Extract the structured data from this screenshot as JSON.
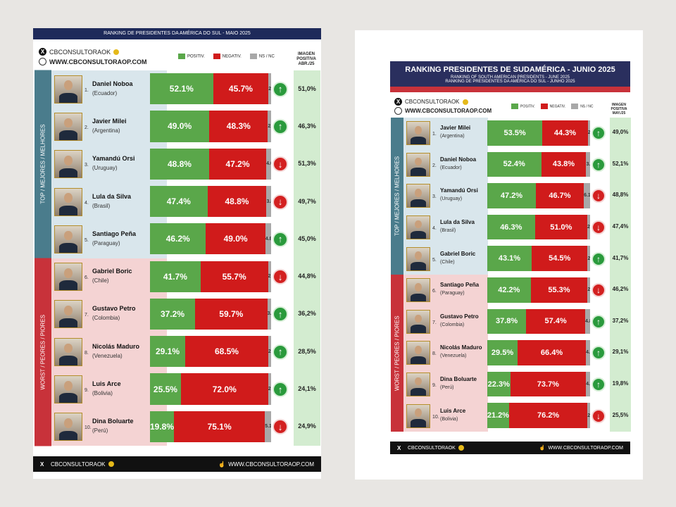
{
  "chart_data": [
    {
      "type": "bar",
      "title": "RANKING DE PRESIDENTES DA AMÉRICA DO SUL - MAIO 2025",
      "brand": {
        "handle": "CBCONSULTORAOK",
        "site": "WWW.CBCONSULTORAOP.COM"
      },
      "legend": {
        "pos": "POSITIV.",
        "neg": "NEGATIV.",
        "ns": "NS / NC"
      },
      "image_header": [
        "IMAGEN",
        "POSITIVA",
        "ABR./25"
      ],
      "groups": [
        "TOP / MEJORES / MELHORES",
        "WORST / PEORES / PIORES"
      ],
      "rows": [
        {
          "rank": "1.",
          "name": "Daniel Noboa",
          "country": "(Ecuador)",
          "pos": 52.1,
          "neg": 45.7,
          "ns": 2.2,
          "pos_label": "52.1%",
          "neg_label": "45.7%",
          "ns_label": "2.2",
          "trend": "up",
          "prev": "51,0%"
        },
        {
          "rank": "2.",
          "name": "Javier Milei",
          "country": "(Argentina)",
          "pos": 49.0,
          "neg": 48.3,
          "ns": 2.7,
          "pos_label": "49.0%",
          "neg_label": "48.3%",
          "ns_label": "2.7",
          "trend": "up",
          "prev": "46,3%"
        },
        {
          "rank": "3.",
          "name": "Yamandú Orsi",
          "country": "(Uruguay)",
          "pos": 48.8,
          "neg": 47.2,
          "ns": 4.0,
          "pos_label": "48.8%",
          "neg_label": "47.2%",
          "ns_label": "4.0",
          "trend": "down",
          "prev": "51,3%"
        },
        {
          "rank": "4.",
          "name": "Lula da Silva",
          "country": "(Brasil)",
          "pos": 47.4,
          "neg": 48.8,
          "ns": 3.8,
          "pos_label": "47.4%",
          "neg_label": "48.8%",
          "ns_label": "3.8",
          "trend": "down",
          "prev": "49,7%"
        },
        {
          "rank": "5.",
          "name": "Santiago Peña",
          "country": "(Paraguay)",
          "pos": 46.2,
          "neg": 49.0,
          "ns": 4.8,
          "pos_label": "46.2%",
          "neg_label": "49.0%",
          "ns_label": "4.8",
          "trend": "up",
          "prev": "45,0%"
        },
        {
          "rank": "6.",
          "name": "Gabriel Boric",
          "country": "(Chile)",
          "pos": 41.7,
          "neg": 55.7,
          "ns": 2.6,
          "pos_label": "41.7%",
          "neg_label": "55.7%",
          "ns_label": "2.6",
          "trend": "down",
          "prev": "44,8%"
        },
        {
          "rank": "7.",
          "name": "Gustavo Petro",
          "country": "(Colombia)",
          "pos": 37.2,
          "neg": 59.7,
          "ns": 3.1,
          "pos_label": "37.2%",
          "neg_label": "59.7%",
          "ns_label": "3.1",
          "trend": "up",
          "prev": "36,2%"
        },
        {
          "rank": "8.",
          "name": "Nicolás Maduro",
          "country": "(Venezuela)",
          "pos": 29.1,
          "neg": 68.5,
          "ns": 2.4,
          "pos_label": "29.1%",
          "neg_label": "68.5%",
          "ns_label": "2.4",
          "trend": "up",
          "prev": "28,5%"
        },
        {
          "rank": "9.",
          "name": "Luis Arce",
          "country": "(Bolivia)",
          "pos": 25.5,
          "neg": 72.0,
          "ns": 2.5,
          "pos_label": "25.5%",
          "neg_label": "72.0%",
          "ns_label": "2.5",
          "trend": "up",
          "prev": "24,1%"
        },
        {
          "rank": "10.",
          "name": "Dina Boluarte",
          "country": "(Perú)",
          "pos": 19.8,
          "neg": 75.1,
          "ns": 5.1,
          "pos_label": "19.8%",
          "neg_label": "75.1%",
          "ns_label": "5.1",
          "trend": "down",
          "prev": "24,9%"
        }
      ]
    },
    {
      "type": "bar",
      "title": "RANKING PRESIDENTES DE SUDAMÉRICA - JUNIO 2025",
      "subtitle1": "RANKING OF SOUTH AMERICAN PRESIDENTS - JUNE 2025",
      "subtitle2": "RANKING DE PRESIDENTES DA AMÉRICA DO SUL - JUNHO 2025",
      "brand": {
        "handle": "CBCONSULTORAOK",
        "site": "WWW.CBCONSULTORAOP.COM"
      },
      "legend": {
        "pos": "POSITIV.",
        "neg": "NEGATIV.",
        "ns": "NS / NC"
      },
      "image_header": [
        "IMAGEN",
        "POSITIVA",
        "MAY./25"
      ],
      "groups": [
        "TOP / MEJORES / MELHORES",
        "WORST / PEORES / PIORES"
      ],
      "rows": [
        {
          "rank": "1.",
          "name": "Javier Milei",
          "country": "(Argentina)",
          "pos": 53.5,
          "neg": 44.3,
          "ns": 2.2,
          "pos_label": "53.5%",
          "neg_label": "44.3%",
          "ns_label": "2.2",
          "trend": "up",
          "prev": "49,0%"
        },
        {
          "rank": "2.",
          "name": "Daniel Noboa",
          "country": "(Ecuador)",
          "pos": 52.4,
          "neg": 43.8,
          "ns": 3.8,
          "pos_label": "52.4%",
          "neg_label": "43.8%",
          "ns_label": "3.8",
          "trend": "up",
          "prev": "52,1%"
        },
        {
          "rank": "3.",
          "name": "Yamandú Orsi",
          "country": "(Uruguay)",
          "pos": 47.2,
          "neg": 46.7,
          "ns": 6.1,
          "pos_label": "47.2%",
          "neg_label": "46.7%",
          "ns_label": "6.1",
          "trend": "down",
          "prev": "48,8%"
        },
        {
          "rank": "4.",
          "name": "Lula da Silva",
          "country": "(Brasil)",
          "pos": 46.3,
          "neg": 51.0,
          "ns": 2.7,
          "pos_label": "46.3%",
          "neg_label": "51.0%",
          "ns_label": "2.7",
          "trend": "down",
          "prev": "47,4%"
        },
        {
          "rank": "5.",
          "name": "Gabriel Boric",
          "country": "(Chile)",
          "pos": 43.1,
          "neg": 54.5,
          "ns": 2.4,
          "pos_label": "43.1%",
          "neg_label": "54.5%",
          "ns_label": "2.4",
          "trend": "up",
          "prev": "41,7%"
        },
        {
          "rank": "6.",
          "name": "Santiago Peña",
          "country": "(Paraguay)",
          "pos": 42.2,
          "neg": 55.3,
          "ns": 2.5,
          "pos_label": "42.2%",
          "neg_label": "55.3%",
          "ns_label": "2.5",
          "trend": "down",
          "prev": "46,2%"
        },
        {
          "rank": "7.",
          "name": "Gustavo Petro",
          "country": "(Colombia)",
          "pos": 37.8,
          "neg": 57.4,
          "ns": 4.8,
          "pos_label": "37.8%",
          "neg_label": "57.4%",
          "ns_label": "4.8",
          "trend": "up",
          "prev": "37,2%"
        },
        {
          "rank": "8.",
          "name": "Nicolás Maduro",
          "country": "(Venezuela)",
          "pos": 29.5,
          "neg": 66.4,
          "ns": 4.1,
          "pos_label": "29.5%",
          "neg_label": "66.4%",
          "ns_label": "4.1",
          "trend": "up",
          "prev": "29,1%"
        },
        {
          "rank": "9.",
          "name": "Dina Boluarte",
          "country": "(Perú)",
          "pos": 22.3,
          "neg": 73.7,
          "ns": 4.0,
          "pos_label": "22.3%",
          "neg_label": "73.7%",
          "ns_label": "4.0",
          "trend": "up",
          "prev": "19,8%"
        },
        {
          "rank": "10.",
          "name": "Luis Arce",
          "country": "(Bolivia)",
          "pos": 21.2,
          "neg": 76.2,
          "ns": 2.6,
          "pos_label": "21.2%",
          "neg_label": "76.2%",
          "ns_label": "2.6",
          "trend": "down",
          "prev": "25,5%"
        }
      ]
    }
  ],
  "colors": {
    "positive": "#5aa74a",
    "negative": "#d01b1b",
    "ns": "#a8a8a8",
    "top_band": "#4a7c8c",
    "worst_band": "#c8323a",
    "top_bg": "#d9e6ec",
    "worst_bg": "#f4d3d3"
  }
}
